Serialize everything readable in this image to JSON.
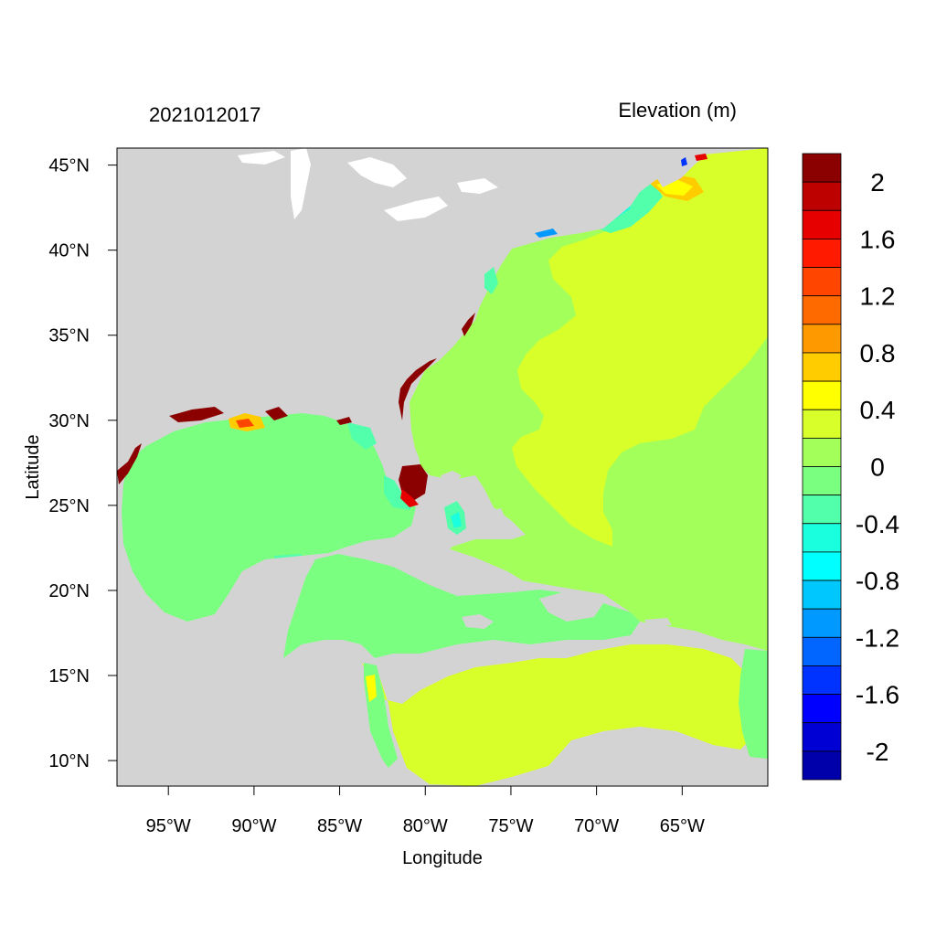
{
  "title_left": "2021012017",
  "title_right": "Elevation (m)",
  "x_axis_label": "Longitude",
  "y_axis_label": "Latitude",
  "x_ticks": [
    {
      "lon": -95,
      "label": "95°W"
    },
    {
      "lon": -90,
      "label": "90°W"
    },
    {
      "lon": -85,
      "label": "85°W"
    },
    {
      "lon": -80,
      "label": "80°W"
    },
    {
      "lon": -75,
      "label": "75°W"
    },
    {
      "lon": -70,
      "label": "70°W"
    },
    {
      "lon": -65,
      "label": "65°W"
    }
  ],
  "y_ticks": [
    {
      "lat": 45,
      "label": "45°N"
    },
    {
      "lat": 40,
      "label": "40°N"
    },
    {
      "lat": 35,
      "label": "35°N"
    },
    {
      "lat": 30,
      "label": "30°N"
    },
    {
      "lat": 25,
      "label": "25°N"
    },
    {
      "lat": 20,
      "label": "20°N"
    },
    {
      "lat": 15,
      "label": "15°N"
    },
    {
      "lat": 10,
      "label": "10°N"
    }
  ],
  "map_extent": {
    "lon_min": -98,
    "lon_max": -60,
    "lat_min": 8.5,
    "lat_max": 46
  },
  "land_color": "#d3d3d3",
  "colorbar": {
    "levels_top_to_bottom": [
      {
        "color": "#8b0000"
      },
      {
        "color": "#bd0000"
      },
      {
        "color": "#e60000"
      },
      {
        "color": "#ff1a00"
      },
      {
        "color": "#ff4500"
      },
      {
        "color": "#ff6a00"
      },
      {
        "color": "#ff9900"
      },
      {
        "color": "#ffcc00"
      },
      {
        "color": "#ffff00"
      },
      {
        "color": "#d9ff2a"
      },
      {
        "color": "#a3ff5a"
      },
      {
        "color": "#7bff80"
      },
      {
        "color": "#52ffaa"
      },
      {
        "color": "#1affdd"
      },
      {
        "color": "#00ffff"
      },
      {
        "color": "#00c8ff"
      },
      {
        "color": "#0099ff"
      },
      {
        "color": "#0066ff"
      },
      {
        "color": "#0033ff"
      },
      {
        "color": "#0000ff"
      },
      {
        "color": "#0000d4"
      },
      {
        "color": "#0000aa"
      }
    ],
    "labels": [
      "2",
      "1.6",
      "1.2",
      "0.8",
      "0.4",
      "0",
      "-0.4",
      "-0.8",
      "-1.2",
      "-1.6",
      "-2"
    ]
  }
}
